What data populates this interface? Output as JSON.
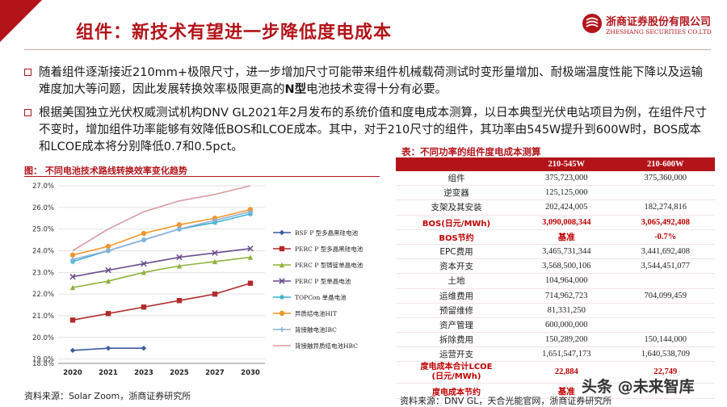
{
  "header": {
    "title": "组件：新技术有望进一步降低度电成本",
    "logo_cn": "浙商证券股份有限公司",
    "logo_en": "ZHESHANG SECURITIES CO.LTD"
  },
  "bullets": [
    {
      "pre": "随着组件逐渐接近210mm+极限尺寸，进一步增加尺寸可能带来组件机械载荷测试时变形量增加、耐极端温度性能下降以及运输难度加大等问题，因此发展转换效率极限更高的",
      "bold": "N型",
      "post": "电池技术变得十分有必要。"
    },
    {
      "pre": "根据美国独立光伏权威测试机构DNV GL2021年2月发布的系统价值和度电成本测算，以日本典型光伏电站项目为例，在组件尺寸不变时，增加组件功率能够有效降低BOS和LCOE成本。其中，对于210尺寸的组件，其功率由545W提升到600W时，BOS成本和LCOE成本将分别降低0.7和0.5pct。",
      "bold": "",
      "post": ""
    }
  ],
  "figure": {
    "title": "图： 不同电池技术路线转换效率变化趋势",
    "source": "资料来源：Solar Zoom，浙商证券研究所"
  },
  "chart_data": {
    "type": "line",
    "categories": [
      "2020",
      "2021",
      "2023",
      "2025",
      "2027",
      "2030"
    ],
    "ylim": [
      18.8,
      27.0
    ],
    "yticks": [
      "18.8%",
      "19.0%",
      "20.0%",
      "21.0%",
      "22.0%",
      "23.0%",
      "24.0%",
      "25.0%",
      "26.0%",
      "27.0%"
    ],
    "legend_position": "right",
    "series": [
      {
        "name": "BSF P 型多晶黑硅电池",
        "color": "#3a5aa0",
        "marker": "diamond",
        "values": [
          19.4,
          19.5,
          19.5,
          null,
          null,
          null
        ]
      },
      {
        "name": "PERC P 型多晶黑硅电池",
        "color": "#b22a2a",
        "marker": "square",
        "values": [
          20.8,
          21.1,
          21.4,
          21.7,
          22.0,
          22.5
        ]
      },
      {
        "name": "PERC P 型铸锭单晶电池",
        "color": "#8fb33a",
        "marker": "triangle",
        "values": [
          22.3,
          22.6,
          23.0,
          23.3,
          23.5,
          23.7
        ]
      },
      {
        "name": "PERC P 型单晶电池",
        "color": "#6a4c8e",
        "marker": "x",
        "values": [
          22.8,
          23.1,
          23.4,
          23.7,
          23.9,
          24.1
        ]
      },
      {
        "name": "TOPCon 单晶电池",
        "color": "#3ab0d0",
        "marker": "star",
        "values": [
          23.5,
          24.0,
          24.5,
          25.0,
          25.3,
          25.7
        ]
      },
      {
        "name": "异质结电池HIT",
        "color": "#f0962c",
        "marker": "circle",
        "values": [
          23.8,
          24.2,
          24.8,
          25.2,
          25.5,
          25.9
        ]
      },
      {
        "name": "背接触电池IBC",
        "color": "#8fb0d8",
        "marker": "plus",
        "values": [
          23.6,
          24.0,
          24.5,
          25.0,
          25.4,
          25.8
        ]
      },
      {
        "name": "背接触异质结电池HBC",
        "color": "#d79aa0",
        "marker": "none",
        "values": [
          24.0,
          25.0,
          25.8,
          26.3,
          26.6,
          27.0
        ]
      }
    ]
  },
  "table": {
    "title": "表：不同功率的组件度电成本测算",
    "headers": [
      "",
      "210-545W",
      "210-600W"
    ],
    "rows": [
      {
        "label": "组件",
        "a": "375,723,000",
        "b": "375,360,000",
        "hl": false
      },
      {
        "label": "逆变器",
        "a": "125,125,000",
        "b": "",
        "hl": false
      },
      {
        "label": "支架及其安装",
        "a": "202,424,005",
        "b": "182,274,816",
        "hl": false
      },
      {
        "label": "BOS(日元/MWh)",
        "a": "3,090,008,344",
        "b": "3,065,492,408",
        "hl": true
      },
      {
        "label": "BOS节约",
        "a": "基准",
        "b": "-0.7%",
        "hl": true
      },
      {
        "label": "EPC费用",
        "a": "3,465,731,344",
        "b": "3,441,692,408",
        "hl": false
      },
      {
        "label": "资本开支",
        "a": "3,568,500,106",
        "b": "3,544,451,077",
        "hl": false
      },
      {
        "label": "土地",
        "a": "104,964,000",
        "b": "",
        "hl": false
      },
      {
        "label": "运维费用",
        "a": "714,962,723",
        "b": "704,099,459",
        "hl": false
      },
      {
        "label": "预留维修",
        "a": "81,331,250",
        "b": "",
        "hl": false
      },
      {
        "label": "资产管理",
        "a": "600,000,000",
        "b": "",
        "hl": false
      },
      {
        "label": "拆除费用",
        "a": "150,289,200",
        "b": "150,144,000",
        "hl": false
      },
      {
        "label": "运营开支",
        "a": "1,651,547,173",
        "b": "1,640,538,709",
        "hl": false
      },
      {
        "label": "度电成本合计LCOE\n(日元/MWh)",
        "a": "22,884",
        "b": "22,749",
        "hl": true,
        "tall": true
      },
      {
        "label": "度电成本节约",
        "a": "基准",
        "b": "",
        "hl": true
      }
    ],
    "source": "资料来源：DNV GL，天合光能官网，浙商证券研究所"
  },
  "watermark": "头条 @未来智库"
}
